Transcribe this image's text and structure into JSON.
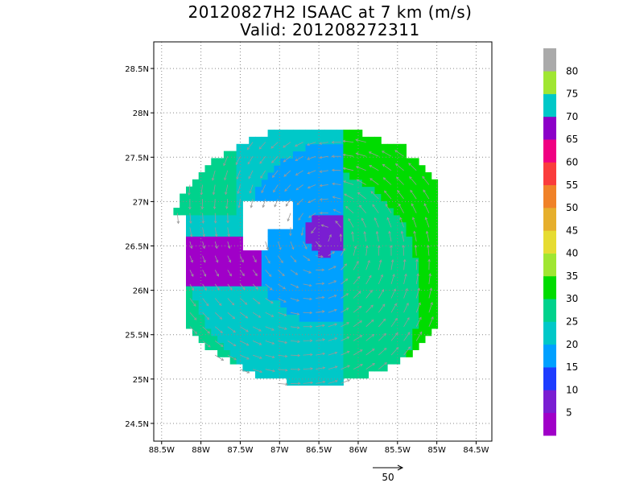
{
  "title": {
    "line1": "20120827H2 ISAAC at 7 km (m/s)",
    "line2": "Valid: 201208272311"
  },
  "axes": {
    "x_ticks": [
      "88.5W",
      "88W",
      "87.5W",
      "87W",
      "86.5W",
      "86W",
      "85.5W",
      "85W",
      "84.5W"
    ],
    "x_values": [
      -88.5,
      -88.0,
      -87.5,
      -87.0,
      -86.5,
      -86.0,
      -85.5,
      -85.0,
      -84.5
    ],
    "y_ticks": [
      "24.5N",
      "25N",
      "25.5N",
      "26N",
      "26.5N",
      "27N",
      "27.5N",
      "28N",
      "28.5N"
    ],
    "y_values": [
      24.5,
      25.0,
      25.5,
      26.0,
      26.5,
      27.0,
      27.5,
      28.0,
      28.5
    ],
    "xlim": [
      -88.6,
      -84.3
    ],
    "ylim": [
      24.3,
      28.8
    ],
    "grid": true
  },
  "colorbar": {
    "labels": [
      "5",
      "10",
      "15",
      "20",
      "25",
      "30",
      "35",
      "40",
      "45",
      "50",
      "55",
      "60",
      "65",
      "70",
      "75",
      "80"
    ],
    "colors": [
      "#a000c8",
      "#7a1ed2",
      "#1e3cff",
      "#00a0ff",
      "#00c8c8",
      "#00d28c",
      "#00dc00",
      "#a0e632",
      "#e6dc32",
      "#e6af2d",
      "#f08228",
      "#fa3c3c",
      "#f00082",
      "#8c00c8",
      "#00c8c8",
      "#a0e632",
      "#aaaaaa"
    ]
  },
  "vector_scale": {
    "label": "50"
  },
  "chart_data": {
    "type": "heatmap",
    "variable": "wind speed at 7 km",
    "units": "m/s",
    "storm": "ISAAC",
    "flight": "20120827H2",
    "valid": "201208272311",
    "center": {
      "lon": -86.45,
      "lat": 26.6
    },
    "low_wind_core_max": 10,
    "northeast_max": 35,
    "overlay": "wind vectors (gray arrows), cyclonic flow around center"
  }
}
